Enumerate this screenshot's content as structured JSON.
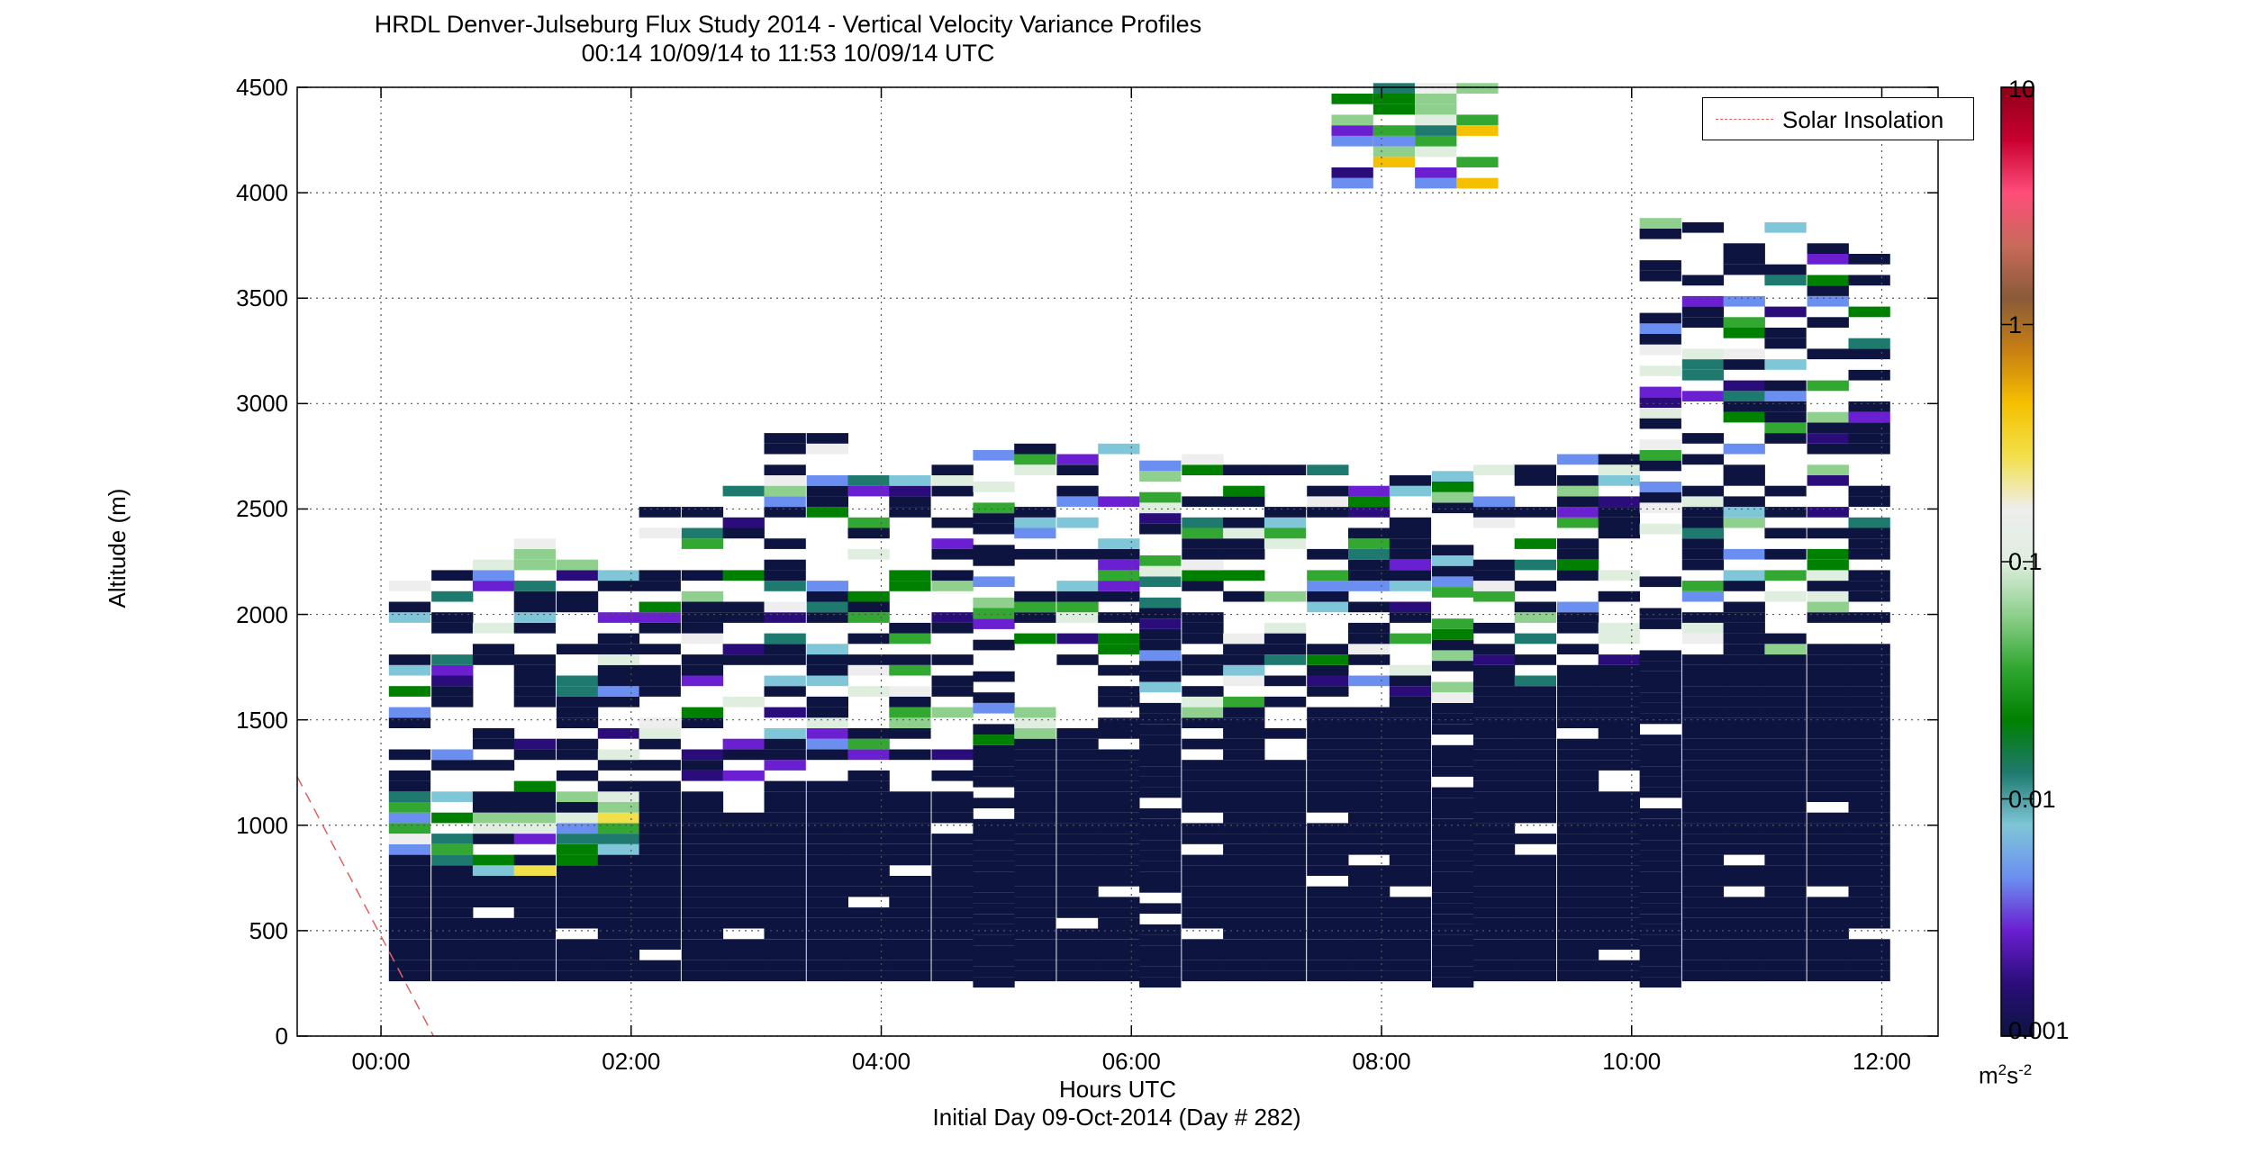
{
  "colors": {
    "background": "#ffffff",
    "axis": "#000000",
    "grid": "#555555",
    "low_value": "#0d1440",
    "solar_line": "#e06060"
  },
  "colormap_stops": [
    "#0d1440",
    "#2a0d7a",
    "#6a1fd0",
    "#6b8ff0",
    "#7fc6d8",
    "#1e7a6e",
    "#008000",
    "#32a832",
    "#8fd08f",
    "#dfeedf",
    "#eeeeee",
    "#f2e04a",
    "#f5c000",
    "#c88010",
    "#8a5a3a",
    "#c86a5a",
    "#ff4d7a",
    "#c80030",
    "#900018"
  ],
  "chart_data": {
    "type": "heatmap",
    "title": "HRDL Denver-Julseburg Flux Study 2014 - Vertical Velocity Variance Profiles",
    "subtitle": "00:14 10/09/14 to 11:53 10/09/14  UTC",
    "xlabel": "Hours UTC",
    "xlabel2": "Initial Day 09-Oct-2014 (Day # 282)",
    "ylabel": "Altitude (m)",
    "x_ticks": [
      "00:00",
      "02:00",
      "04:00",
      "06:00",
      "08:00",
      "10:00",
      "12:00"
    ],
    "x_tick_values": [
      0,
      2,
      4,
      6,
      8,
      10,
      12
    ],
    "y_ticks": [
      "0",
      "500",
      "1000",
      "1500",
      "2000",
      "2500",
      "3000",
      "3500",
      "4000",
      "4500"
    ],
    "y_tick_values": [
      0,
      500,
      1000,
      1500,
      2000,
      2500,
      3000,
      3500,
      4000,
      4500
    ],
    "xlim": [
      -0.67,
      12.45
    ],
    "ylim": [
      0,
      4500
    ],
    "grid": true,
    "grid_style": "dotted",
    "colorbar": {
      "scale": "log",
      "range": [
        0.001,
        10
      ],
      "tick_labels": [
        "10",
        "1",
        "0.1",
        "0.01",
        "0.001"
      ],
      "tick_values": [
        10,
        1,
        0.1,
        0.01,
        0.001
      ],
      "unit_base": "m",
      "unit_sup1": "2",
      "unit_mid": "s",
      "unit_sup2": "-2"
    },
    "legend": {
      "label": "Solar Insolation",
      "position": "top-right",
      "style": "dashed red"
    },
    "profile_times_hours": [
      0.23,
      0.57,
      0.9,
      1.23,
      1.57,
      1.9,
      2.23,
      2.57,
      2.9,
      3.23,
      3.57,
      3.9,
      4.23,
      4.57,
      4.9,
      5.23,
      5.57,
      5.9,
      6.23,
      6.57,
      6.9,
      7.23,
      7.57,
      7.9,
      8.23,
      8.57,
      8.9,
      9.23,
      9.57,
      9.9,
      10.23,
      10.57,
      10.9,
      11.23,
      11.57,
      11.9
    ],
    "profile_top_altitude_m": [
      2120,
      2200,
      2250,
      2350,
      2400,
      2420,
      2500,
      2550,
      2600,
      2880,
      2820,
      2700,
      2800,
      2800,
      2880,
      2800,
      2750,
      2800,
      2750,
      2750,
      2680,
      2700,
      2680,
      2700,
      2680,
      2700,
      2700,
      2700,
      2750,
      2750,
      3850,
      3850,
      3850,
      3950,
      3800,
      3700
    ],
    "profile_base_altitude_m": [
      260,
      260,
      260,
      260,
      260,
      260,
      260,
      260,
      260,
      260,
      260,
      260,
      260,
      260,
      230,
      260,
      260,
      260,
      230,
      260,
      260,
      260,
      260,
      260,
      260,
      230,
      260,
      260,
      260,
      260,
      230,
      260,
      260,
      260,
      260,
      260
    ],
    "boundary_layer_top_m": [
      1050,
      950,
      950,
      950,
      1150,
      1200,
      1200,
      1100,
      1050,
      1200,
      1150,
      1200,
      1250,
      1250,
      1300,
      1400,
      1500,
      1500,
      1450,
      1500,
      1550,
      1500,
      1550,
      1550,
      1600,
      1550,
      1650,
      1650,
      1700,
      1750,
      1750,
      1800,
      1850,
      1800,
      1800,
      1850
    ],
    "elevated_layer": {
      "x": [
        7.6,
        8.9
      ],
      "y_min": 4020,
      "y_max": 4500
    },
    "solar_insolation_line": {
      "x": [
        -0.67,
        0.42
      ],
      "y": [
        1230,
        0
      ]
    }
  }
}
